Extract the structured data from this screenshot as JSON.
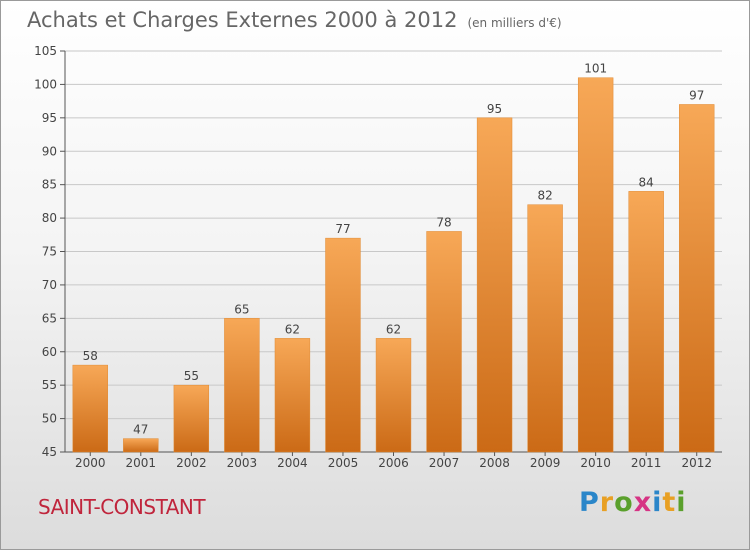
{
  "title": "Achats et Charges Externes 2000 à 2012",
  "unit": "(en milliers d'€)",
  "location": "SAINT-CONSTANT",
  "logo": {
    "text": "Proxiti",
    "letters": [
      {
        "char": "P",
        "color": "#2a86c9"
      },
      {
        "char": "r",
        "color": "#e8a024"
      },
      {
        "char": "o",
        "color": "#5aa02c"
      },
      {
        "char": "x",
        "color": "#d63384"
      },
      {
        "char": "i",
        "color": "#2a86c9"
      },
      {
        "char": "t",
        "color": "#e8a024"
      },
      {
        "char": "i",
        "color": "#5aa02c"
      }
    ]
  },
  "chart_data": {
    "type": "bar",
    "title": "Achats et Charges Externes 2000 à 2012",
    "subtitle": "(en milliers d'€)",
    "xlabel": "",
    "ylabel": "",
    "categories": [
      "2000",
      "2001",
      "2002",
      "2003",
      "2004",
      "2005",
      "2006",
      "2007",
      "2008",
      "2009",
      "2010",
      "2011",
      "2012"
    ],
    "values": [
      58,
      47,
      55,
      65,
      62,
      77,
      62,
      78,
      95,
      82,
      101,
      84,
      97
    ],
    "ylim": [
      45,
      105
    ],
    "yticks": [
      45,
      50,
      55,
      60,
      65,
      70,
      75,
      80,
      85,
      90,
      95,
      100,
      105
    ],
    "grid": true,
    "legend": "none",
    "colors": {
      "bar_top": "#f7a857",
      "bar_bottom": "#cb6a16",
      "grid": "#c8c8c8"
    }
  }
}
